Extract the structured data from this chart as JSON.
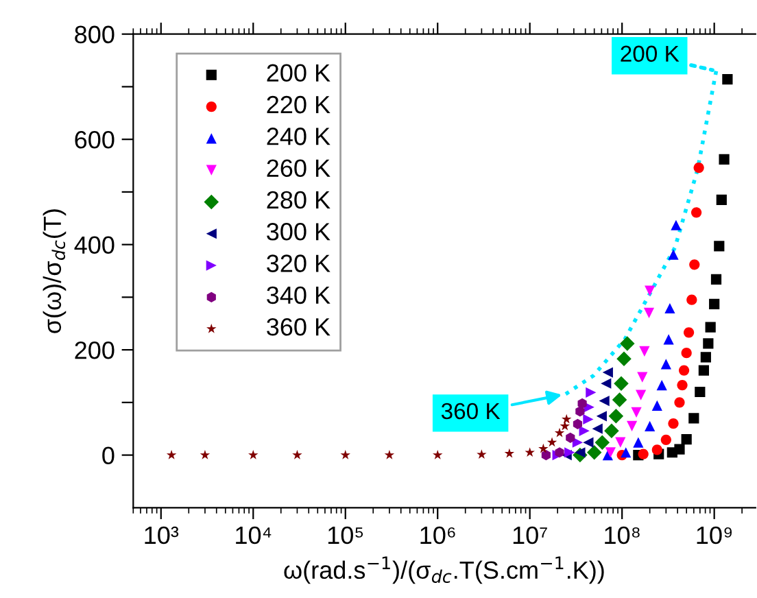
{
  "chart_data": {
    "type": "scatter",
    "xlabel": "ω(rad.s$^{−1}$)/(σ$_{dc}$.T(S.cm$^{−1}$.K))",
    "ylabel": "σ(ω)/σ$_{dc}$(T)",
    "log": "x",
    "xlim": [
      500,
      2800000000
    ],
    "ylim": [
      -100,
      800
    ],
    "xticks": [
      {
        "value": 1000,
        "label": "10³"
      },
      {
        "value": 10000,
        "label": "10⁴"
      },
      {
        "value": 100000,
        "label": "10⁵"
      },
      {
        "value": 1000000,
        "label": "10⁶"
      },
      {
        "value": 10000000,
        "label": "10⁷"
      },
      {
        "value": 100000000,
        "label": "10⁸"
      },
      {
        "value": 1000000000,
        "label": "10⁹"
      }
    ],
    "yticks": [
      0,
      {
        "value": 100,
        "label": null
      },
      200,
      {
        "value": 300,
        "label": null
      },
      400,
      {
        "value": 500,
        "label": null
      },
      600,
      {
        "value": 700,
        "label": null
      },
      800
    ],
    "legend": "top left",
    "grid": false,
    "series": [
      {
        "name": "200 K",
        "color": "#000000",
        "marker": "square",
        "x": [
          150000000,
          250000000,
          350000000,
          420000000,
          500000000,
          600000000,
          700000000,
          770000000,
          810000000,
          860000000,
          910000000,
          1000000000,
          1050000000,
          1130000000,
          1200000000,
          1280000000,
          1390000000
        ],
        "values": [
          0,
          2,
          5,
          11,
          30,
          70,
          120,
          161,
          186,
          212,
          243,
          287,
          334,
          397,
          485,
          562,
          714
        ]
      },
      {
        "name": "220 K",
        "color": "#ff0000",
        "x": [
          100000000,
          170000000,
          240000000,
          300000000,
          360000000,
          420000000,
          450000000,
          470000000,
          500000000,
          530000000,
          570000000,
          610000000,
          640000000,
          680000000
        ],
        "values": [
          0,
          2,
          10,
          29,
          60,
          100,
          133,
          161,
          194,
          233,
          295,
          362,
          461,
          546
        ]
      },
      {
        "name": "240 K",
        "color": "#0000ff",
        "x": [
          70000000,
          110000000,
          150000000,
          200000000,
          240000000,
          270000000,
          300000000,
          320000000,
          330000000,
          360000000,
          385000000
        ],
        "values": [
          0,
          5,
          24,
          55,
          94,
          133,
          173,
          220,
          279,
          381,
          437
        ]
      },
      {
        "name": "260 K",
        "color": "#ff00ff",
        "x": [
          75000000,
          96000000,
          128000000,
          143000000,
          160000000,
          166000000,
          175000000,
          196000000,
          200000000
        ],
        "values": [
          5,
          24,
          55,
          81,
          114,
          148,
          197,
          270,
          312
        ]
      },
      {
        "name": "280 K",
        "color": "#008000",
        "x": [
          35000000,
          50000000,
          61000000,
          77000000,
          86000000,
          94000000,
          98000000,
          105000000,
          114000000
        ],
        "values": [
          0,
          5,
          24,
          46,
          74,
          105,
          136,
          183,
          212
        ]
      },
      {
        "name": "300 K",
        "color": "#000080",
        "x": [
          25000000,
          35000000,
          43000000,
          54000000,
          60000000,
          64000000,
          67000000,
          70000000
        ],
        "values": [
          0,
          5,
          24,
          50,
          74,
          103,
          136,
          157
        ]
      },
      {
        "name": "320 K",
        "color": "#8000ff",
        "x": [
          20000000,
          27000000,
          33000000,
          39000000,
          43000000,
          44000000,
          46000000
        ],
        "values": [
          0,
          5,
          24,
          46,
          68,
          91,
          119
        ]
      },
      {
        "name": "340 K",
        "color": "#800080",
        "x": [
          15000000,
          21000000,
          27500000,
          33000000,
          35000000,
          37000000
        ],
        "values": [
          0,
          5,
          33,
          59,
          83,
          98
        ]
      },
      {
        "name": "360 K",
        "color": "#800000",
        "x": [
          1300,
          3000,
          10000,
          30000,
          100000,
          300000,
          1000000,
          3000000,
          6000000,
          10000000,
          14000000,
          17400000,
          21000000,
          24000000,
          25000000
        ],
        "values": [
          0,
          0,
          0,
          0,
          0,
          0,
          0,
          1,
          3,
          5,
          12,
          24,
          42,
          55,
          68
        ]
      },
      {
        "type": "line",
        "color": "#00e5ff",
        "line_style": "dotted",
        "marker": "none",
        "x": [
          24500000,
          49000000,
          107000000,
          214000000,
          376000000,
          660000000,
          1050000000
        ],
        "values": [
          116,
          151,
          220,
          316,
          395,
          543,
          730
        ]
      }
    ],
    "annotations": [
      {
        "text": "200 K",
        "x": 1050000000,
        "y": 730
      },
      {
        "text": "360 K",
        "x": 24500000,
        "y": 116
      }
    ]
  }
}
